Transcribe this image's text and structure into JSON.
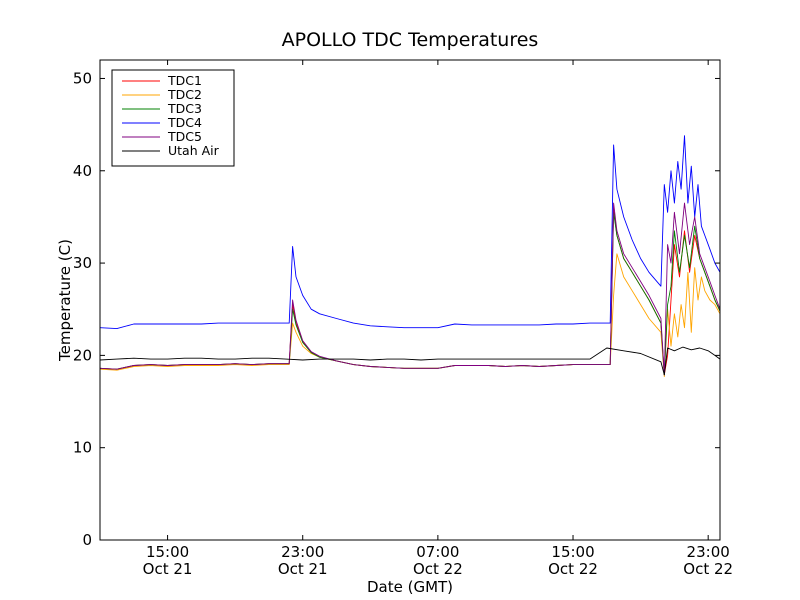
{
  "chart_data": {
    "type": "line",
    "title": "APOLLO TDC Temperatures",
    "xlabel": "Date (GMT)",
    "ylabel": "Temperature (C)",
    "xunit": "hours since Oct 21 11:00 GMT",
    "xlim": [
      0,
      36.7
    ],
    "ylim": [
      0,
      52
    ],
    "yticks": [
      0,
      10,
      20,
      30,
      40,
      50
    ],
    "xticks": [
      {
        "x": 4,
        "label_time": "15:00",
        "label_date": "Oct 21"
      },
      {
        "x": 12,
        "label_time": "23:00",
        "label_date": "Oct 21"
      },
      {
        "x": 20,
        "label_time": "07:00",
        "label_date": "Oct 22"
      },
      {
        "x": 28,
        "label_time": "15:00",
        "label_date": "Oct 22"
      },
      {
        "x": 36,
        "label_time": "23:00",
        "label_date": "Oct 22"
      }
    ],
    "legend_position": "top-left",
    "series": [
      {
        "name": "TDC1",
        "color": "#ff0000",
        "x": [
          0,
          1,
          2,
          3,
          4,
          5,
          6,
          7,
          8,
          9,
          10,
          11.2,
          11.4,
          11.6,
          12,
          12.5,
          13,
          14,
          15,
          16,
          17,
          18,
          19,
          20,
          21,
          22,
          23,
          24,
          25,
          26,
          27,
          28,
          29,
          30.2,
          30.4,
          30.6,
          31,
          31.5,
          32,
          32.5,
          33.2,
          33.4,
          33.6,
          33.8,
          34.0,
          34.3,
          34.6,
          34.9,
          35.2,
          35.5,
          35.8,
          36.1,
          36.4,
          36.7
        ],
        "y": [
          18.6,
          18.5,
          18.9,
          19.0,
          18.9,
          19.0,
          19.0,
          19.0,
          19.1,
          19.0,
          19.1,
          19.1,
          25.5,
          23.5,
          21.5,
          20.3,
          19.8,
          19.4,
          19.0,
          18.8,
          18.7,
          18.6,
          18.6,
          18.6,
          18.9,
          18.9,
          18.9,
          18.8,
          18.9,
          18.8,
          18.9,
          19.0,
          19.0,
          19.0,
          35.8,
          33.0,
          30.5,
          29.0,
          27.5,
          26.0,
          23.5,
          17.9,
          20.0,
          26.0,
          32.0,
          28.5,
          33.5,
          29.0,
          33.0,
          30.5,
          29.0,
          27.5,
          26.0,
          24.8
        ]
      },
      {
        "name": "TDC2",
        "color": "#ffa500",
        "x": [
          0,
          1,
          2,
          3,
          4,
          5,
          6,
          7,
          8,
          9,
          10,
          11.2,
          11.4,
          11.6,
          12,
          12.5,
          13,
          14,
          15,
          16,
          17,
          18,
          19,
          20,
          21,
          22,
          23,
          24,
          25,
          26,
          27,
          28,
          29,
          30.2,
          30.4,
          30.6,
          31,
          31.5,
          32,
          32.5,
          33.2,
          33.4,
          33.6,
          33.8,
          34.0,
          34.2,
          34.4,
          34.6,
          34.8,
          35.0,
          35.2,
          35.4,
          35.6,
          35.8,
          36.1,
          36.4,
          36.7
        ],
        "y": [
          18.5,
          18.4,
          18.8,
          18.9,
          18.8,
          18.9,
          18.9,
          18.9,
          19.0,
          18.9,
          19.0,
          19.0,
          23.5,
          22.5,
          21.0,
          20.2,
          19.8,
          19.4,
          19.0,
          18.8,
          18.7,
          18.6,
          18.6,
          18.6,
          18.9,
          18.9,
          18.9,
          18.8,
          18.9,
          18.8,
          18.9,
          19.0,
          19.0,
          19.0,
          26.5,
          31.0,
          28.5,
          27.0,
          25.5,
          24.0,
          22.5,
          17.7,
          25.0,
          21.0,
          24.5,
          22.0,
          25.5,
          23.0,
          29.0,
          22.5,
          29.5,
          26.0,
          28.5,
          27.0,
          26.0,
          25.5,
          24.5
        ]
      },
      {
        "name": "TDC3",
        "color": "#008000",
        "x": [
          0,
          1,
          2,
          3,
          4,
          5,
          6,
          7,
          8,
          9,
          10,
          11.2,
          11.4,
          11.6,
          12,
          12.5,
          13,
          14,
          15,
          16,
          17,
          18,
          19,
          20,
          21,
          22,
          23,
          24,
          25,
          26,
          27,
          28,
          29,
          30.2,
          30.4,
          30.6,
          31,
          31.5,
          32,
          32.5,
          33.2,
          33.4,
          33.6,
          33.8,
          34.0,
          34.3,
          34.6,
          34.9,
          35.2,
          35.5,
          35.8,
          36.1,
          36.4,
          36.7
        ],
        "y": [
          18.6,
          18.5,
          18.9,
          19.0,
          18.9,
          19.0,
          19.0,
          19.0,
          19.1,
          19.0,
          19.1,
          19.1,
          25.0,
          23.3,
          21.4,
          20.3,
          19.8,
          19.4,
          19.0,
          18.8,
          18.7,
          18.6,
          18.6,
          18.6,
          18.9,
          18.9,
          18.9,
          18.8,
          18.9,
          18.8,
          18.9,
          19.0,
          19.0,
          19.0,
          35.5,
          33.0,
          30.5,
          29.0,
          27.5,
          26.0,
          23.5,
          17.9,
          25.5,
          27.5,
          33.5,
          29.0,
          33.0,
          29.5,
          34.0,
          30.5,
          29.0,
          27.5,
          26.0,
          24.8
        ]
      },
      {
        "name": "TDC4",
        "color": "#0000ff",
        "x": [
          0,
          1,
          2,
          3,
          4,
          5,
          6,
          7,
          8,
          9,
          10,
          11.2,
          11.4,
          11.6,
          12,
          12.5,
          13,
          14,
          15,
          16,
          17,
          18,
          19,
          20,
          21,
          22,
          23,
          24,
          25,
          26,
          27,
          28,
          29,
          30.2,
          30.4,
          30.6,
          31,
          31.5,
          32,
          32.5,
          33.2,
          33.4,
          33.6,
          33.8,
          34.0,
          34.2,
          34.4,
          34.6,
          34.8,
          35.0,
          35.2,
          35.4,
          35.6,
          35.8,
          36.1,
          36.4,
          36.7
        ],
        "y": [
          23.0,
          22.9,
          23.4,
          23.4,
          23.4,
          23.4,
          23.4,
          23.5,
          23.5,
          23.5,
          23.5,
          23.5,
          31.8,
          28.5,
          26.5,
          25.0,
          24.5,
          24.0,
          23.5,
          23.2,
          23.1,
          23.0,
          23.0,
          23.0,
          23.4,
          23.3,
          23.3,
          23.3,
          23.3,
          23.3,
          23.4,
          23.4,
          23.5,
          23.5,
          42.8,
          38.0,
          35.0,
          32.5,
          30.5,
          29.0,
          27.5,
          38.5,
          35.5,
          40.0,
          36.5,
          41.0,
          38.0,
          43.8,
          36.5,
          40.5,
          35.0,
          38.5,
          34.0,
          33.0,
          31.5,
          30.0,
          29.0
        ]
      },
      {
        "name": "TDC5",
        "color": "#800080",
        "x": [
          0,
          1,
          2,
          3,
          4,
          5,
          6,
          7,
          8,
          9,
          10,
          11.2,
          11.4,
          11.6,
          12,
          12.5,
          13,
          14,
          15,
          16,
          17,
          18,
          19,
          20,
          21,
          22,
          23,
          24,
          25,
          26,
          27,
          28,
          29,
          30.2,
          30.4,
          30.6,
          31,
          31.5,
          32,
          32.5,
          33.2,
          33.4,
          33.6,
          33.8,
          34.0,
          34.3,
          34.6,
          34.9,
          35.2,
          35.5,
          35.8,
          36.1,
          36.4,
          36.7
        ],
        "y": [
          18.6,
          18.5,
          18.9,
          19.0,
          18.9,
          19.0,
          19.0,
          19.0,
          19.1,
          19.0,
          19.1,
          19.1,
          26.0,
          23.8,
          21.6,
          20.4,
          19.9,
          19.4,
          19.0,
          18.8,
          18.7,
          18.6,
          18.6,
          18.6,
          18.9,
          18.9,
          18.9,
          18.8,
          18.9,
          18.8,
          18.9,
          19.0,
          19.0,
          19.0,
          36.5,
          33.5,
          31.0,
          29.5,
          28.0,
          26.5,
          24.0,
          17.9,
          32.0,
          30.0,
          35.5,
          31.0,
          36.5,
          32.0,
          35.0,
          31.0,
          29.5,
          28.0,
          26.5,
          25.0
        ]
      },
      {
        "name": "Utah Air",
        "color": "#000000",
        "x": [
          0,
          1,
          2,
          3,
          4,
          5,
          6,
          7,
          8,
          9,
          10,
          11,
          12,
          13,
          14,
          15,
          16,
          17,
          18,
          19,
          20,
          21,
          22,
          23,
          24,
          25,
          26,
          27,
          28,
          29,
          30,
          31,
          32,
          33.2,
          33.4,
          33.6,
          34,
          34.5,
          35,
          35.5,
          36,
          36.4,
          36.7
        ],
        "y": [
          19.5,
          19.6,
          19.7,
          19.6,
          19.6,
          19.7,
          19.7,
          19.6,
          19.6,
          19.7,
          19.7,
          19.6,
          19.5,
          19.6,
          19.6,
          19.6,
          19.5,
          19.6,
          19.6,
          19.5,
          19.6,
          19.6,
          19.6,
          19.6,
          19.6,
          19.6,
          19.6,
          19.6,
          19.6,
          19.6,
          20.8,
          20.5,
          20.2,
          19.3,
          17.9,
          20.8,
          20.5,
          20.9,
          20.6,
          20.8,
          20.5,
          20.0,
          19.6
        ]
      }
    ]
  }
}
